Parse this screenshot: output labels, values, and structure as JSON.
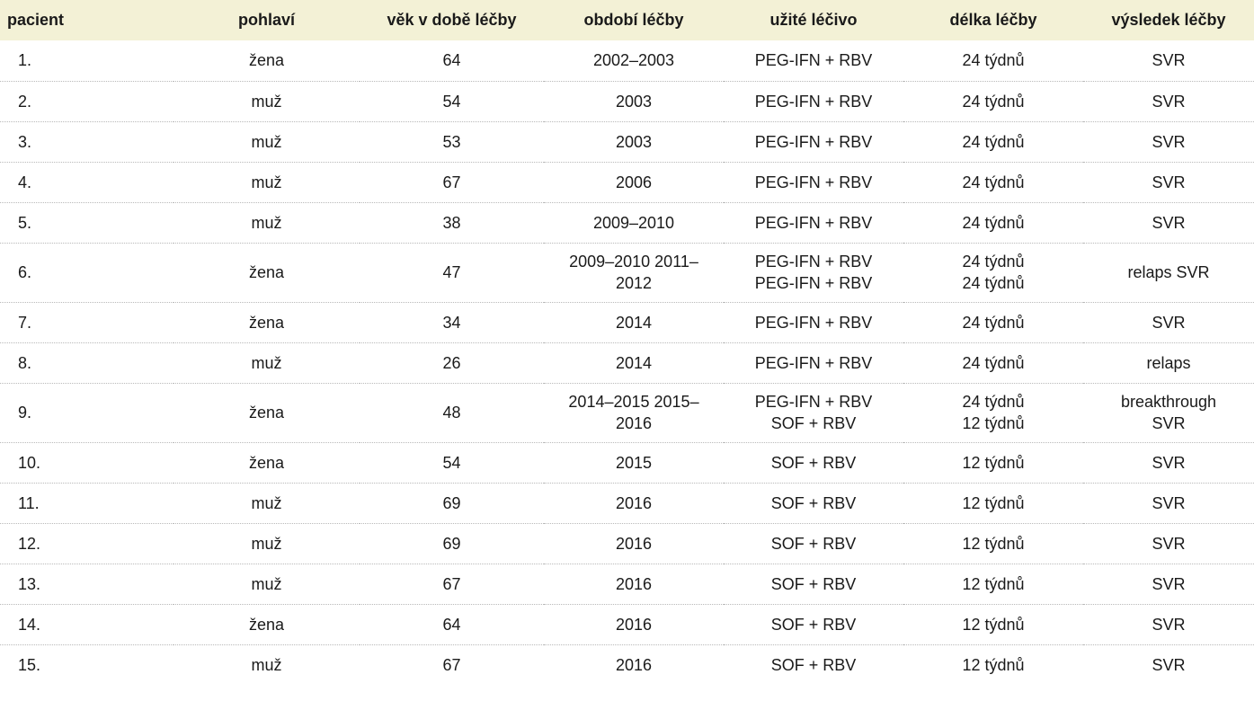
{
  "table": {
    "headers": [
      "pacient",
      "pohlaví",
      "věk v době léčby",
      "období léčby",
      "užité léčivo",
      "délka léčby",
      "výsledek léčby"
    ],
    "rows": [
      {
        "patient": "1.",
        "sex": "žena",
        "age": "64",
        "period": [
          "2002–2003"
        ],
        "drug": [
          "PEG-IFN + RBV"
        ],
        "duration": [
          "24 týdnů"
        ],
        "result": [
          "SVR"
        ]
      },
      {
        "patient": "2.",
        "sex": "muž",
        "age": "54",
        "period": [
          "2003"
        ],
        "drug": [
          "PEG-IFN + RBV"
        ],
        "duration": [
          "24 týdnů"
        ],
        "result": [
          "SVR"
        ]
      },
      {
        "patient": "3.",
        "sex": "muž",
        "age": "53",
        "period": [
          "2003"
        ],
        "drug": [
          "PEG-IFN + RBV"
        ],
        "duration": [
          "24 týdnů"
        ],
        "result": [
          "SVR"
        ]
      },
      {
        "patient": "4.",
        "sex": "muž",
        "age": "67",
        "period": [
          "2006"
        ],
        "drug": [
          "PEG-IFN + RBV"
        ],
        "duration": [
          "24 týdnů"
        ],
        "result": [
          "SVR"
        ]
      },
      {
        "patient": "5.",
        "sex": "muž",
        "age": "38",
        "period": [
          "2009–2010"
        ],
        "drug": [
          "PEG-IFN + RBV"
        ],
        "duration": [
          "24 týdnů"
        ],
        "result": [
          "SVR"
        ]
      },
      {
        "patient": "6.",
        "sex": "žena",
        "age": "47",
        "period": [
          "2009–2010 2011–",
          "2012"
        ],
        "drug": [
          "PEG-IFN + RBV",
          "PEG-IFN + RBV"
        ],
        "duration": [
          "24 týdnů",
          "24 týdnů"
        ],
        "result": [
          "relaps SVR"
        ]
      },
      {
        "patient": "7.",
        "sex": "žena",
        "age": "34",
        "period": [
          "2014"
        ],
        "drug": [
          "PEG-IFN + RBV"
        ],
        "duration": [
          "24 týdnů"
        ],
        "result": [
          "SVR"
        ]
      },
      {
        "patient": "8.",
        "sex": "muž",
        "age": "26",
        "period": [
          "2014"
        ],
        "drug": [
          "PEG-IFN + RBV"
        ],
        "duration": [
          "24 týdnů"
        ],
        "result": [
          "relaps"
        ]
      },
      {
        "patient": "9.",
        "sex": "žena",
        "age": "48",
        "period": [
          "2014–2015 2015–",
          "2016"
        ],
        "drug": [
          "PEG-IFN + RBV",
          "SOF + RBV"
        ],
        "duration": [
          "24 týdnů",
          "12 týdnů"
        ],
        "result": [
          "breakthrough",
          "SVR"
        ]
      },
      {
        "patient": "10.",
        "sex": "žena",
        "age": "54",
        "period": [
          "2015"
        ],
        "drug": [
          "SOF + RBV"
        ],
        "duration": [
          "12 týdnů"
        ],
        "result": [
          "SVR"
        ]
      },
      {
        "patient": "11.",
        "sex": "muž",
        "age": "69",
        "period": [
          "2016"
        ],
        "drug": [
          "SOF + RBV"
        ],
        "duration": [
          "12 týdnů"
        ],
        "result": [
          "SVR"
        ]
      },
      {
        "patient": "12.",
        "sex": "muž",
        "age": "69",
        "period": [
          "2016"
        ],
        "drug": [
          "SOF + RBV"
        ],
        "duration": [
          "12 týdnů"
        ],
        "result": [
          "SVR"
        ]
      },
      {
        "patient": "13.",
        "sex": "muž",
        "age": "67",
        "period": [
          "2016"
        ],
        "drug": [
          "SOF + RBV"
        ],
        "duration": [
          "12 týdnů"
        ],
        "result": [
          "SVR"
        ]
      },
      {
        "patient": "14.",
        "sex": "žena",
        "age": "64",
        "period": [
          "2016"
        ],
        "drug": [
          "SOF + RBV"
        ],
        "duration": [
          "12 týdnů"
        ],
        "result": [
          "SVR"
        ]
      },
      {
        "patient": "15.",
        "sex": "muž",
        "age": "67",
        "period": [
          "2016"
        ],
        "drug": [
          "SOF + RBV"
        ],
        "duration": [
          "12 týdnů"
        ],
        "result": [
          "SVR"
        ]
      }
    ]
  }
}
